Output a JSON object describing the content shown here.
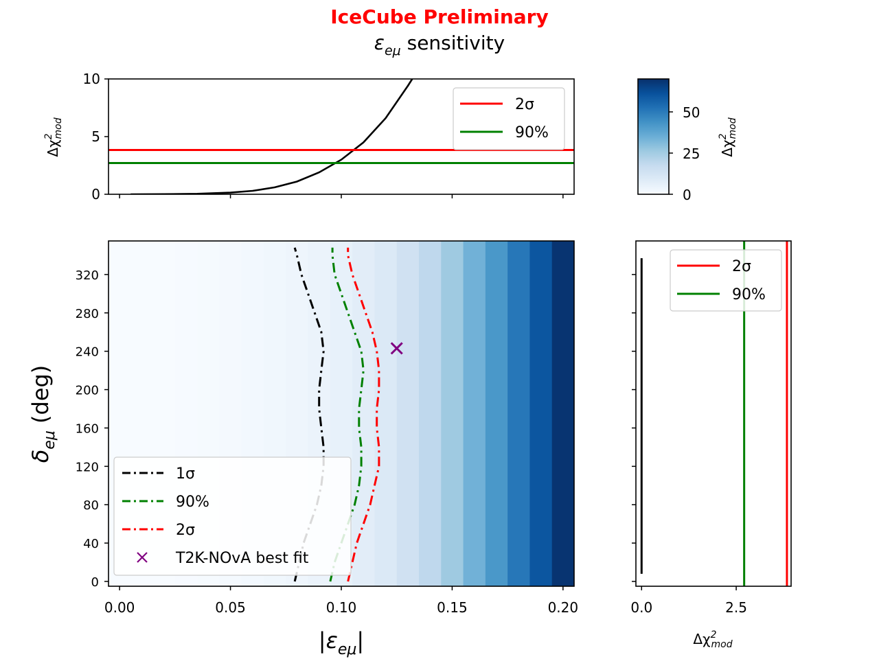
{
  "header": {
    "title": "IceCube Preliminary",
    "subtitle_symbol": "ε",
    "subtitle_sub": "eμ",
    "subtitle_text": " sensitivity",
    "title_color": "#ff0000"
  },
  "labels": {
    "top_ylabel_base": "Δχ",
    "top_ylabel_sup": "2",
    "top_ylabel_sub": "mod",
    "colorbar_label_base": "Δχ",
    "colorbar_label_sup": "2",
    "colorbar_label_sub": "mod",
    "main_ylabel_symbol": "δ",
    "main_ylabel_sub": "eμ",
    "main_ylabel_unit": " (deg)",
    "main_xlabel_left": "|ε",
    "main_xlabel_sub": "eμ",
    "main_xlabel_right": "|",
    "right_xlabel_base": "Δχ",
    "right_xlabel_sup": "2",
    "right_xlabel_sub": "mod"
  },
  "legends": {
    "top": [
      {
        "label": "2σ",
        "color": "#ff0000",
        "style": "solid"
      },
      {
        "label": "90%",
        "color": "#008000",
        "style": "solid"
      }
    ],
    "main": [
      {
        "label": "1σ",
        "color": "#000000",
        "style": "dashdot"
      },
      {
        "label": "90%",
        "color": "#008000",
        "style": "dashdot"
      },
      {
        "label": "2σ",
        "color": "#ff0000",
        "style": "dashdot"
      },
      {
        "label": "T2K-NOvA best fit",
        "color": "#800080",
        "style": "marker-x"
      }
    ],
    "right": [
      {
        "label": "2σ",
        "color": "#ff0000",
        "style": "solid"
      },
      {
        "label": "90%",
        "color": "#008000",
        "style": "solid"
      }
    ]
  },
  "chart_data": [
    {
      "id": "top-profile",
      "type": "line",
      "xlim": [
        -0.005,
        0.205
      ],
      "ylim": [
        0,
        10
      ],
      "yticks": [
        "0",
        "5",
        "10"
      ],
      "xticks": [
        0.0,
        0.05,
        0.1,
        0.15,
        0.2
      ],
      "series": [
        {
          "color": "#000000",
          "x": [
            0.005,
            0.02,
            0.035,
            0.05,
            0.06,
            0.07,
            0.08,
            0.09,
            0.1,
            0.11,
            0.12,
            0.13,
            0.132
          ],
          "y": [
            0.0,
            0.01,
            0.04,
            0.14,
            0.3,
            0.6,
            1.1,
            1.9,
            3.0,
            4.5,
            6.6,
            9.4,
            10.0
          ]
        },
        {
          "name": "2σ",
          "color": "#ff0000",
          "hline": 3.84
        },
        {
          "name": "90%",
          "color": "#008000",
          "hline": 2.71
        }
      ]
    },
    {
      "id": "colorbar",
      "type": "heatmap",
      "colormap": "Blues",
      "clim": [
        0,
        70
      ],
      "ticks": [
        "0",
        "25",
        "50"
      ]
    },
    {
      "id": "main-contours",
      "type": "heatmap",
      "xlim": [
        -0.005,
        0.205
      ],
      "ylim": [
        -5,
        355
      ],
      "xticks": [
        "0.00",
        "0.05",
        "0.10",
        "0.15",
        "0.20"
      ],
      "yticks": [
        "0",
        "40",
        "80",
        "120",
        "160",
        "200",
        "240",
        "280",
        "320"
      ],
      "heatmap_x_edges": [
        -0.005,
        0.005,
        0.015,
        0.025,
        0.035,
        0.045,
        0.055,
        0.065,
        0.075,
        0.085,
        0.095,
        0.105,
        0.115,
        0.125,
        0.135,
        0.145,
        0.155,
        0.165,
        0.175,
        0.185,
        0.195,
        0.205
      ],
      "heatmap_column_values": [
        0,
        0.02,
        0.1,
        0.3,
        0.6,
        1.0,
        1.6,
        2.3,
        3.1,
        4.3,
        5.6,
        7.5,
        10,
        14,
        19,
        26,
        34,
        42,
        51,
        60,
        69
      ],
      "contours": [
        {
          "name": "1σ",
          "color": "#000000",
          "x": [
            0.079,
            0.081,
            0.083,
            0.086,
            0.089,
            0.091,
            0.092,
            0.092,
            0.091,
            0.09,
            0.09,
            0.091,
            0.092,
            0.091,
            0.088,
            0.085,
            0.082,
            0.08,
            0.079
          ],
          "y": [
            0,
            20,
            40,
            60,
            80,
            100,
            120,
            140,
            160,
            180,
            200,
            220,
            240,
            260,
            280,
            300,
            320,
            340,
            348
          ]
        },
        {
          "name": "90%",
          "color": "#008000",
          "x": [
            0.095,
            0.097,
            0.1,
            0.103,
            0.106,
            0.108,
            0.109,
            0.109,
            0.108,
            0.108,
            0.109,
            0.11,
            0.109,
            0.106,
            0.103,
            0.1,
            0.097,
            0.096,
            0.096
          ],
          "y": [
            0,
            20,
            40,
            60,
            80,
            100,
            120,
            140,
            160,
            180,
            200,
            220,
            240,
            260,
            280,
            300,
            320,
            340,
            348
          ]
        },
        {
          "name": "2σ",
          "color": "#ff0000",
          "x": [
            0.103,
            0.105,
            0.107,
            0.11,
            0.113,
            0.115,
            0.117,
            0.117,
            0.116,
            0.116,
            0.117,
            0.117,
            0.116,
            0.114,
            0.111,
            0.108,
            0.105,
            0.103,
            0.103
          ],
          "y": [
            0,
            20,
            40,
            60,
            80,
            100,
            120,
            140,
            160,
            180,
            200,
            220,
            240,
            260,
            280,
            300,
            320,
            340,
            348
          ]
        }
      ],
      "points": [
        {
          "name": "T2K-NOvA best fit",
          "color": "#800080",
          "marker": "x",
          "x": 0.125,
          "y": 243
        }
      ]
    },
    {
      "id": "right-profile",
      "type": "line",
      "xlim": [
        -0.15,
        3.95
      ],
      "ylim": [
        -5,
        355
      ],
      "xticks": [
        "0.0",
        "2.5"
      ],
      "series": [
        {
          "color": "#000000",
          "vline": 0.0,
          "yrange": [
            8,
            337
          ]
        },
        {
          "name": "90%",
          "color": "#008000",
          "vline": 2.71
        },
        {
          "name": "2σ",
          "color": "#ff0000",
          "vline": 3.84
        }
      ]
    }
  ]
}
